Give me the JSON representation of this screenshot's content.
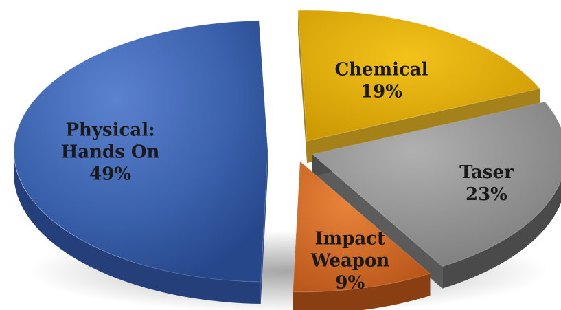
{
  "chart_data": {
    "type": "pie",
    "style": "3d-exploded",
    "legend": "none",
    "slices": [
      {
        "label_lines": [
          "Physical:",
          "Hands On"
        ],
        "value": 49,
        "value_label": "49%",
        "color": "#3b62ad"
      },
      {
        "label_lines": [
          "Impact",
          "Weapon"
        ],
        "value": 9,
        "value_label": "9%",
        "color": "#d2691e"
      },
      {
        "label_lines": [
          "Taser"
        ],
        "value": 23,
        "value_label": "23%",
        "color": "#8e8e8e"
      },
      {
        "label_lines": [
          "Chemical"
        ],
        "value": 19,
        "value_label": "19%",
        "color": "#e0a800"
      }
    ]
  }
}
